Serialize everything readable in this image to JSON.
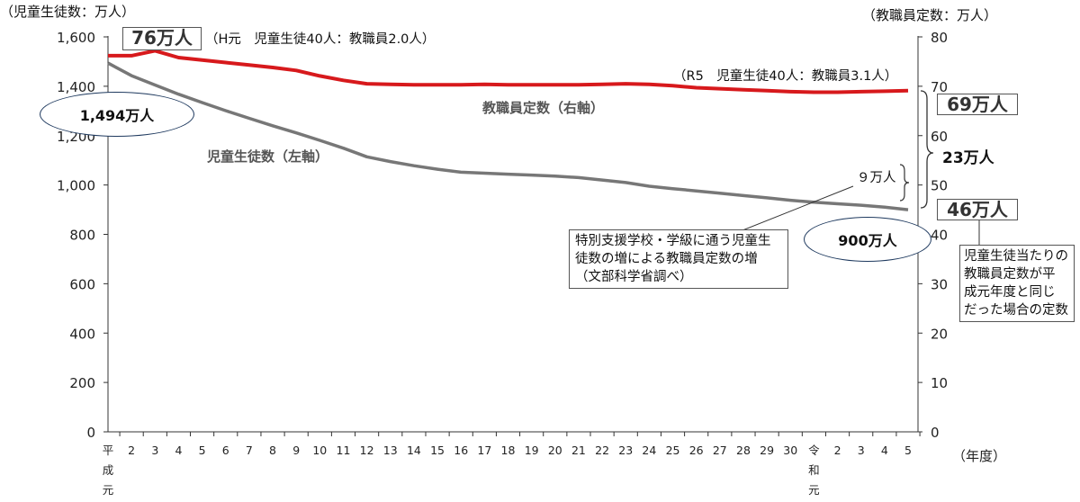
{
  "chart_data": {
    "type": "line",
    "y_left_label": "（児童生徒数：万人）",
    "y_right_label": "（教職員定数：万人）",
    "x_unit_label": "（年度）",
    "ylim_left": [
      0,
      1600
    ],
    "ylim_right": [
      0,
      80
    ],
    "y_left_ticks": [
      "0",
      "200",
      "400",
      "600",
      "800",
      "1,000",
      "1,200",
      "1,400",
      "1,600"
    ],
    "y_right_ticks": [
      "0",
      "10",
      "20",
      "30",
      "40",
      "50",
      "60",
      "70",
      "80"
    ],
    "categories": [
      "平成元",
      "2",
      "3",
      "4",
      "5",
      "6",
      "7",
      "8",
      "9",
      "10",
      "11",
      "12",
      "13",
      "14",
      "15",
      "16",
      "17",
      "18",
      "19",
      "20",
      "21",
      "22",
      "23",
      "24",
      "25",
      "26",
      "27",
      "28",
      "29",
      "30",
      "令和元",
      "2",
      "3",
      "4",
      "5"
    ],
    "series": [
      {
        "name": "教職員定数（右軸）",
        "axis": "right",
        "color": "#d7191c",
        "values": [
          76.2,
          76.2,
          77.2,
          75.8,
          75.3,
          74.8,
          74.3,
          73.8,
          73.2,
          72.1,
          71.2,
          70.5,
          70.4,
          70.3,
          70.3,
          70.3,
          70.4,
          70.3,
          70.3,
          70.3,
          70.3,
          70.4,
          70.5,
          70.4,
          70.1,
          69.7,
          69.5,
          69.3,
          69.1,
          68.9,
          68.8,
          68.8,
          68.9,
          69.0,
          69.1
        ]
      },
      {
        "name": "児童生徒数（左軸）",
        "axis": "left",
        "color": "#777777",
        "values": [
          1494,
          1443,
          1405,
          1368,
          1334,
          1301,
          1270,
          1240,
          1211,
          1181,
          1149,
          1114,
          1095,
          1078,
          1064,
          1052,
          1048,
          1044,
          1040,
          1036,
          1030,
          1020,
          1010,
          995,
          985,
          976,
          967,
          957,
          948,
          938,
          930,
          924,
          918,
          910,
          900
        ]
      }
    ]
  },
  "annotations": {
    "start_staff_box": "76万人",
    "start_ratio_note": "（H元　児童生徒40人：教職員2.0人）",
    "end_ratio_note": "（R5　児童生徒40人：教職員3.1人）",
    "start_students": "1,494万人",
    "end_students": "900万人",
    "end_staff_box": "69万人",
    "hypothetical_box": "46万人",
    "gap_label": "23万人",
    "small_gap_label": "９万人",
    "staff_series_label": "教職員定数（右軸）",
    "student_series_label": "児童生徒数（左軸）",
    "special_needs_note": [
      "特別支援学校・学級に通う児童生",
      "徒数の増による教職員定数の増",
      "（文部科学省調べ）"
    ],
    "hypothetical_note": [
      "児童生徒当たりの",
      "教職員定数が平",
      "成元年度と同じ",
      "だった場合の定数"
    ]
  }
}
